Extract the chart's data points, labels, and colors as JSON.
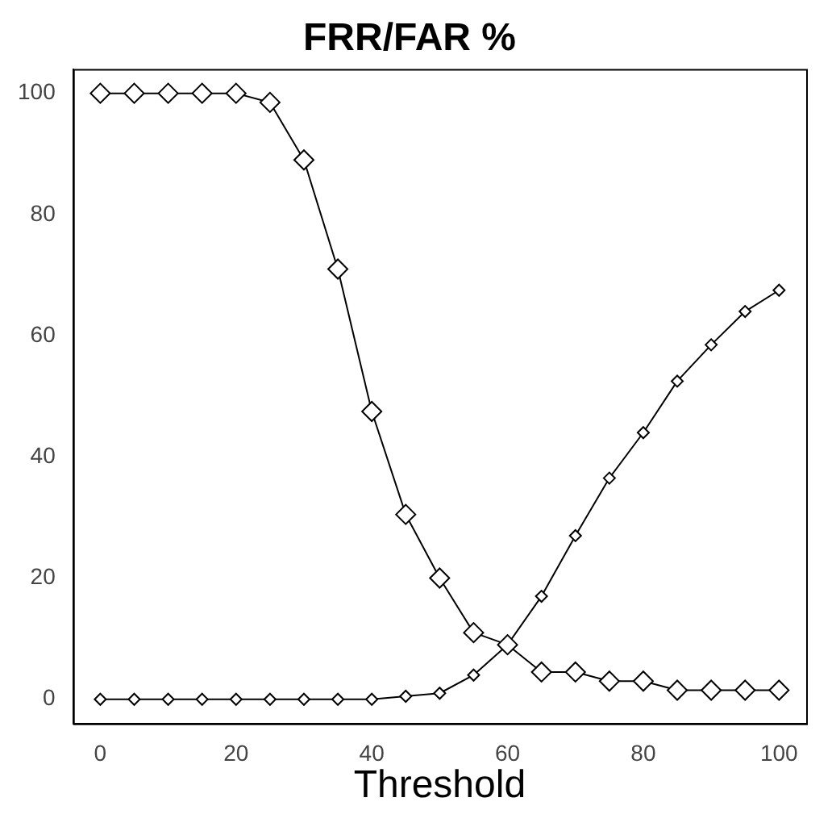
{
  "chart_data": {
    "type": "line",
    "title": "FRR/FAR %",
    "xlabel": "Threshold",
    "x": [
      0,
      5,
      10,
      15,
      20,
      25,
      30,
      35,
      40,
      45,
      50,
      55,
      60,
      65,
      70,
      75,
      80,
      85,
      90,
      95,
      100
    ],
    "series": [
      {
        "color": "#000000",
        "values": [
          100,
          100,
          100,
          100,
          100,
          98.5,
          89,
          71,
          47.5,
          30.5,
          20,
          11,
          9,
          4.5,
          4.5,
          3,
          3,
          1.5,
          1.5,
          1.5,
          1.5
        ]
      },
      {
        "color": "#000000",
        "values": [
          0,
          0,
          0,
          0,
          0,
          0,
          0,
          0,
          0,
          0.5,
          1,
          4,
          9,
          17,
          27,
          36.5,
          44,
          52.5,
          58.5,
          64,
          67.5
        ]
      }
    ],
    "xlim": [
      -4,
      104
    ],
    "ylim": [
      -4,
      104
    ],
    "xticks": [
      0,
      20,
      40,
      60,
      80,
      100
    ],
    "yticks": [
      0,
      20,
      40,
      60,
      80,
      100
    ],
    "grid": false,
    "legend": false,
    "marker": "diamond",
    "line_style": "solid"
  }
}
